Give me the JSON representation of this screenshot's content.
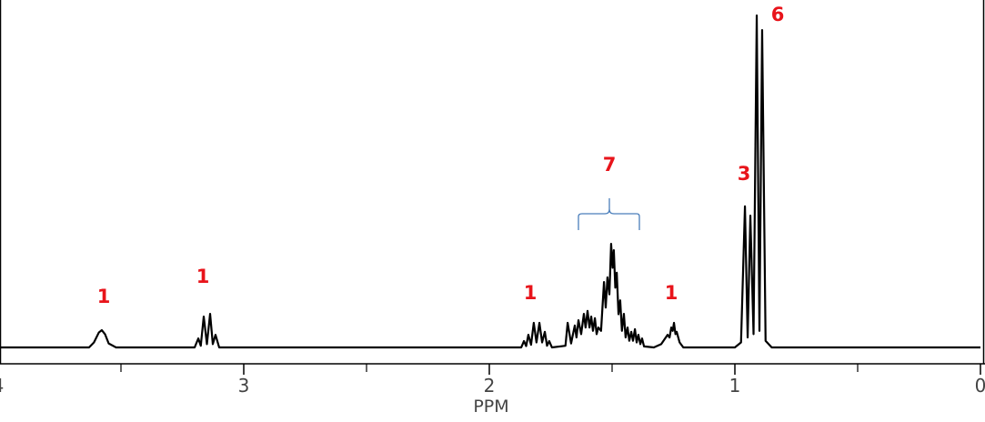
{
  "chart_data": {
    "type": "line",
    "x_label": "PPM",
    "xlim": [
      4,
      0
    ],
    "ylim": [
      0,
      100
    ],
    "xticks": [
      4,
      3,
      2,
      1,
      0
    ],
    "xminorticks": [
      3.5,
      2.5,
      1.5,
      0.5
    ],
    "color": "#000000",
    "annotations": [
      "1",
      "1",
      "1",
      "7",
      "1",
      "3",
      "6"
    ],
    "x": [
      4.0,
      3.63,
      3.61,
      3.59,
      3.578,
      3.565,
      3.55,
      3.52,
      3.2,
      3.185,
      3.175,
      3.163,
      3.15,
      3.137,
      3.126,
      3.115,
      3.1,
      1.87,
      1.859,
      1.85,
      1.841,
      1.83,
      1.819,
      1.808,
      1.796,
      1.785,
      1.774,
      1.765,
      1.756,
      1.745,
      1.69,
      1.681,
      1.667,
      1.652,
      1.645,
      1.637,
      1.626,
      1.615,
      1.608,
      1.6,
      1.592,
      1.585,
      1.578,
      1.57,
      1.563,
      1.556,
      1.545,
      1.533,
      1.526,
      1.519,
      1.511,
      1.504,
      1.498,
      1.493,
      1.487,
      1.481,
      1.474,
      1.467,
      1.46,
      1.452,
      1.445,
      1.437,
      1.43,
      1.422,
      1.415,
      1.407,
      1.4,
      1.393,
      1.385,
      1.378,
      1.37,
      1.33,
      1.3,
      1.274,
      1.266,
      1.259,
      1.253,
      1.248,
      1.242,
      1.237,
      1.225,
      1.21,
      1.0,
      0.975,
      0.959,
      0.948,
      0.937,
      0.924,
      0.911,
      0.9,
      0.889,
      0.875,
      0.85,
      0
    ],
    "values": [
      0,
      0,
      1.5,
      4.5,
      5.2,
      4,
      1.2,
      0,
      0,
      2.7,
      0.5,
      9.3,
      1,
      10.1,
      1,
      3.8,
      0,
      0,
      1.9,
      0.4,
      3.8,
      0.8,
      7.4,
      1.5,
      7.4,
      1.5,
      4.7,
      0.5,
      1.9,
      0,
      0.5,
      7.4,
      1.2,
      6.6,
      3,
      8.2,
      4,
      10.1,
      6,
      11,
      6,
      9.3,
      5,
      8.8,
      4,
      6,
      5,
      19.7,
      12,
      21.1,
      16,
      31.2,
      24,
      29.3,
      18,
      22.5,
      10,
      14.2,
      5,
      10.1,
      3,
      6,
      2,
      4.7,
      2,
      5.5,
      1.5,
      3.8,
      1,
      2.7,
      0.3,
      0,
      1,
      3.8,
      3,
      6,
      5,
      7.4,
      4,
      4.7,
      1.5,
      0,
      0,
      1.5,
      42.5,
      3,
      39.7,
      4,
      100,
      5,
      95.6,
      2,
      0,
      0
    ]
  }
}
